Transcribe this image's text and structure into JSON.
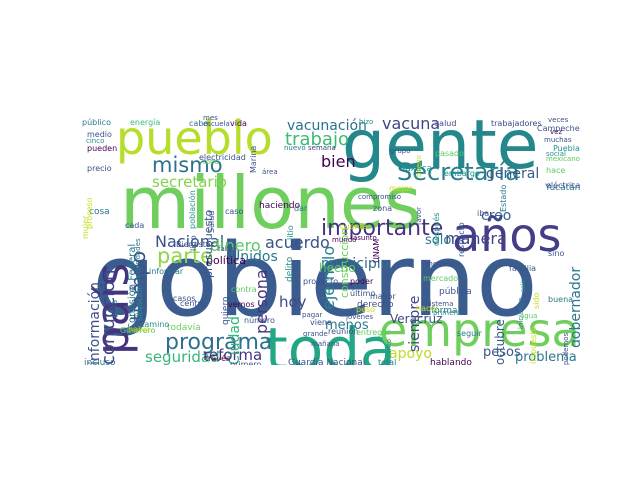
{
  "words": [
    {
      "text": "gobierno",
      "color": "#3b5c8e"
    },
    {
      "text": "millones",
      "color": "#6fce5d"
    },
    {
      "text": "gente",
      "color": "#23878c"
    },
    {
      "text": "toda",
      "color": "#22a784"
    },
    {
      "text": "empresa",
      "color": "#6fce5d"
    },
    {
      "text": "pueblo",
      "color": "#b5de2b"
    },
    {
      "text": "años",
      "color": "#433e85"
    },
    {
      "text": "país",
      "color": "#46337e"
    },
    {
      "text": "Secretaría",
      "color": "#277f8e"
    },
    {
      "text": "programa",
      "color": "#2d718e"
    },
    {
      "text": "mismo",
      "color": "#2c728e"
    },
    {
      "text": "importante",
      "color": "#46327e"
    },
    {
      "text": "tiempo",
      "color": "#3a538b"
    },
    {
      "text": "parte",
      "color": "#8ed645"
    },
    {
      "text": "trabajo",
      "color": "#3bbb75"
    },
    {
      "text": "vacuna",
      "color": "#404688"
    },
    {
      "text": "manera",
      "color": "#414487"
    },
    {
      "text": "bien",
      "color": "#440154"
    },
    {
      "text": "persona",
      "color": "#46337e"
    },
    {
      "text": "ejemplo",
      "color": "#25838e"
    },
    {
      "text": "acuerdo",
      "color": "#3b518b"
    },
    {
      "text": "Nacional",
      "color": "#3b518b"
    },
    {
      "text": "dinero",
      "color": "#5cc863"
    },
    {
      "text": "secretario",
      "color": "#84d44b"
    },
    {
      "text": "seguridad",
      "color": "#35b779"
    },
    {
      "text": "reforma",
      "color": "#453581"
    },
    {
      "text": "vacunación",
      "color": "#2d708e"
    },
    {
      "text": "hoy",
      "color": "#3e4989"
    },
    {
      "text": "Unidos",
      "color": "#2a788e"
    },
    {
      "text": "Ciudad",
      "color": "#2fb47c"
    },
    {
      "text": "municipio",
      "color": "#2e6e8e"
    },
    {
      "text": "gobernador",
      "color": "#2a778e"
    },
    {
      "text": "general",
      "color": "#355e8d"
    },
    {
      "text": "creo",
      "color": "#355e8d"
    },
    {
      "text": "sólo",
      "color": "#297b8e"
    },
    {
      "text": "corrupción",
      "color": "#414487"
    },
    {
      "text": "información",
      "color": "#3c508b"
    },
    {
      "text": "pesos",
      "color": "#3a548c"
    },
    {
      "text": "problema",
      "color": "#2a768e"
    },
    {
      "text": "apoyo",
      "color": "#bade28"
    },
    {
      "text": "siempre",
      "color": "#3f4889"
    },
    {
      "text": "menos",
      "color": "#2a768e"
    },
    {
      "text": "octubre",
      "color": "#38598c"
    },
    {
      "text": "Veracruz",
      "color": "#3e4a89"
    },
    {
      "text": "hecho",
      "color": "#5cc863"
    },
    {
      "text": "política",
      "color": "#440154"
    },
    {
      "text": "presupuesto",
      "color": "#38598c"
    },
    {
      "text": "construcción",
      "color": "#6ccd5a"
    },
    {
      "text": "salud",
      "color": "#3f4788"
    },
    {
      "text": "trabajadores",
      "color": "#3f4788"
    },
    {
      "text": "público",
      "color": "#2a788e"
    },
    {
      "text": "energía",
      "color": "#3bbb75"
    },
    {
      "text": "cabo",
      "color": "#2d718e"
    },
    {
      "text": "vida",
      "color": "#440154"
    },
    {
      "text": "semana",
      "color": "#414487"
    },
    {
      "text": "electricidad",
      "color": "#3b528b"
    },
    {
      "text": "medio",
      "color": "#3b528b"
    },
    {
      "text": "pueden",
      "color": "#440154"
    },
    {
      "text": "precio",
      "color": "#3b528b"
    },
    {
      "text": "cosa",
      "color": "#2c728e"
    },
    {
      "text": "cada",
      "color": "#3b528b"
    },
    {
      "text": "haciendo",
      "color": "#440154"
    },
    {
      "text": "Comisión Federal",
      "color": "#2a788e"
    },
    {
      "text": "incluso",
      "color": "#2a788e"
    },
    {
      "text": "Guardia Nacional",
      "color": "#3b528b"
    },
    {
      "text": "hablando",
      "color": "#440154"
    },
    {
      "text": "todavía",
      "color": "#6ccd5a"
    },
    {
      "text": "derecho",
      "color": "#3b528b"
    },
    {
      "text": "forma",
      "color": "#2a788e"
    },
    {
      "text": "pública",
      "color": "#3b528b"
    },
    {
      "text": "delito",
      "color": "#21918c"
    },
    {
      "text": "zona",
      "color": "#3b528b"
    },
    {
      "text": "UNAM",
      "color": "#440154"
    },
    {
      "text": "respecto",
      "color": "#3b528b"
    },
    {
      "text": "iba",
      "color": "#3b528b"
    },
    {
      "text": "seguir",
      "color": "#2a788e"
    },
    {
      "text": "sino",
      "color": "#3b528b"
    },
    {
      "text": "informar",
      "color": "#2a788e"
    },
    {
      "text": "Bienestar",
      "color": "#3b528b"
    },
    {
      "text": "Guerrero",
      "color": "#5ec962"
    },
    {
      "text": "mundo",
      "color": "#440154"
    },
    {
      "text": "asunto",
      "color": "#440154"
    },
    {
      "text": "reunión",
      "color": "#3b528b"
    },
    {
      "text": "poder",
      "color": "#440154"
    },
    {
      "text": "último",
      "color": "#3b528b"
    },
    {
      "text": "jóvenes",
      "color": "#3b528b"
    },
    {
      "text": "Oaxaca",
      "color": "#21918c"
    },
    {
      "text": "Puebla",
      "color": "#21918c"
    },
    {
      "text": "Yucatán",
      "color": "#2a788e"
    },
    {
      "text": "podemos",
      "color": "#3b528b"
    },
    {
      "text": "total",
      "color": "#2a788e"
    },
    {
      "text": "caso",
      "color": "#3b528b"
    },
    {
      "text": "vemos",
      "color": "#440154"
    },
    {
      "text": "cuanto",
      "color": "#21918c"
    },
    {
      "text": "mal",
      "color": "#3b528b"
    },
    {
      "text": "quiero",
      "color": "#3b528b"
    },
    {
      "text": "viene",
      "color": "#3b528b"
    },
    {
      "text": "nuevo",
      "color": "#2a788e"
    },
    {
      "text": "grupo",
      "color": "#3b528b"
    },
    {
      "text": "escuela",
      "color": "#3b528b"
    },
    {
      "text": "primero",
      "color": "#3b528b"
    },
    {
      "text": "través",
      "color": "#440154"
    },
    {
      "text": "número",
      "color": "#3b528b"
    },
    {
      "text": "litio",
      "color": "#21918c"
    },
    {
      "text": "muchas",
      "color": "#3b528b"
    },
    {
      "text": "veces",
      "color": "#3b528b"
    },
    {
      "text": "hizo",
      "color": "#21918c"
    },
    {
      "text": "vez",
      "color": "#440154"
    },
    {
      "text": "social",
      "color": "#21918c"
    },
    {
      "text": "área",
      "color": "#3b528b"
    },
    {
      "text": "cinco",
      "color": "#21918c"
    },
    {
      "text": "mes",
      "color": "#3b528b"
    },
    {
      "text": "mexicano",
      "color": "#5ec962"
    },
    {
      "text": "eléctrica",
      "color": "#3b528b"
    },
    {
      "text": "embargo",
      "color": "#21918c"
    },
    {
      "text": "mayor",
      "color": "#3b528b"
    },
    {
      "text": "mañana",
      "color": "#3b528b"
    },
    {
      "text": "compromiso",
      "color": "#3b528b"
    },
    {
      "text": "camino",
      "color": "#21918c"
    },
    {
      "text": "iniciativa",
      "color": "#2a788e"
    },
    {
      "text": "sistema",
      "color": "#3b528b"
    },
    {
      "text": "primera",
      "color": "#21918c"
    },
    {
      "text": "mercado",
      "color": "#5ec962"
    },
    {
      "text": "situación",
      "color": "#21918c"
    },
    {
      "text": "momento",
      "color": "#3b528b"
    },
    {
      "text": "centro",
      "color": "#3b528b"
    },
    {
      "text": "autoridades",
      "color": "#2a788e"
    },
    {
      "text": "pagar",
      "color": "#3b528b"
    },
    {
      "text": "falta",
      "color": "#3b528b"
    },
    {
      "text": "grande",
      "color": "#3b528b"
    },
    {
      "text": "mejor",
      "color": "#c8e020"
    },
    {
      "text": "después",
      "color": "#21918c"
    },
    {
      "text": "favor",
      "color": "#3b528b"
    },
    {
      "text": "contra",
      "color": "#5ec962"
    },
    {
      "text": "obra",
      "color": "#2a788e"
    },
    {
      "text": "proyecto",
      "color": "#3b528b"
    },
    {
      "text": "seis",
      "color": "#21918c"
    },
    {
      "text": "buena",
      "color": "#2a788e"
    },
    {
      "text": "casos",
      "color": "#3b528b"
    },
    {
      "text": "robo",
      "color": "#5ec962"
    },
    {
      "text": "agua",
      "color": "#5ec962"
    },
    {
      "text": "Salud",
      "color": "#3b528b"
    },
    {
      "text": "Marina",
      "color": "#3b528b"
    },
    {
      "text": "proceso",
      "color": "#c8e020"
    },
    {
      "text": "pasado",
      "color": "#5ec962"
    },
    {
      "text": "cuenta",
      "color": "#c8e020"
    },
    {
      "text": "peso",
      "color": "#c8e020"
    },
    {
      "text": "hacer",
      "color": "#c8e020"
    },
    {
      "text": "entregar",
      "color": "#5ec962"
    },
    {
      "text": "población",
      "color": "#21918c"
    },
    {
      "text": "litro",
      "color": "#3b528b"
    },
    {
      "text": "dar",
      "color": "#2a788e"
    },
    {
      "text": "Campeche",
      "color": "#3b528b"
    },
    {
      "text": "bueno",
      "color": "#c8e020"
    },
    {
      "text": "hace",
      "color": "#5ec962"
    },
    {
      "text": "sido",
      "color": "#c8e020"
    },
    {
      "text": "había",
      "color": "#c8e020"
    },
    {
      "text": "familia",
      "color": "#3b528b"
    },
    {
      "text": "impuesto",
      "color": "#c8e020"
    },
    {
      "text": "mujer",
      "color": "#c8e020"
    },
    {
      "text": "Estado",
      "color": "#2a788e"
    }
  ]
}
